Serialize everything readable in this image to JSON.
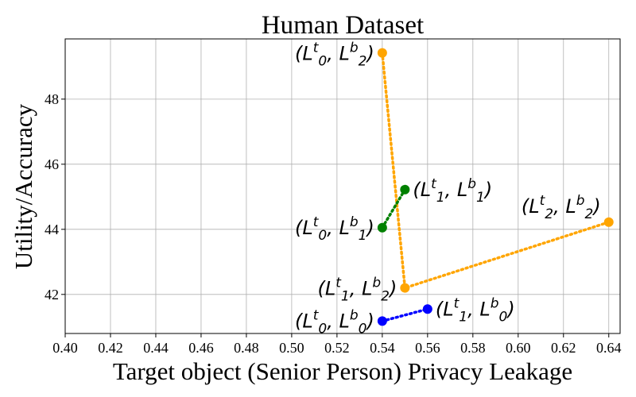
{
  "chart_data": {
    "type": "scatter",
    "title": "Human Dataset",
    "xlabel": "Target object (Senior Person) Privacy Leakage",
    "ylabel": "Utility/Accuracy",
    "xlim": [
      0.4,
      0.645
    ],
    "ylim": [
      40.8,
      49.85
    ],
    "xticks": [
      "0.40",
      "0.42",
      "0.44",
      "0.46",
      "0.48",
      "0.50",
      "0.52",
      "0.54",
      "0.56",
      "0.58",
      "0.60",
      "0.62",
      "0.64"
    ],
    "yticks": [
      "42",
      "44",
      "46",
      "48"
    ],
    "grid": true,
    "series": [
      {
        "name": "orange",
        "color": "#ffa500",
        "points": [
          {
            "x": 0.54,
            "y": 49.42,
            "label": "(L_0^t, L_2^b)"
          },
          {
            "x": 0.55,
            "y": 42.2,
            "label": "(L_1^t, L_2^b)"
          },
          {
            "x": 0.64,
            "y": 44.22,
            "label": "(L_2^t, L_2^b)"
          }
        ]
      },
      {
        "name": "green",
        "color": "#008000",
        "points": [
          {
            "x": 0.54,
            "y": 44.05,
            "label": "(L_0^t, L_1^b)"
          },
          {
            "x": 0.55,
            "y": 45.22,
            "label": "(L_1^t, L_1^b)"
          }
        ]
      },
      {
        "name": "blue",
        "color": "#0000ff",
        "points": [
          {
            "x": 0.54,
            "y": 41.18,
            "label": "(L_0^t, L_0^b)"
          },
          {
            "x": 0.56,
            "y": 41.55,
            "label": "(L_1^t, L_0^b)"
          }
        ]
      }
    ]
  }
}
